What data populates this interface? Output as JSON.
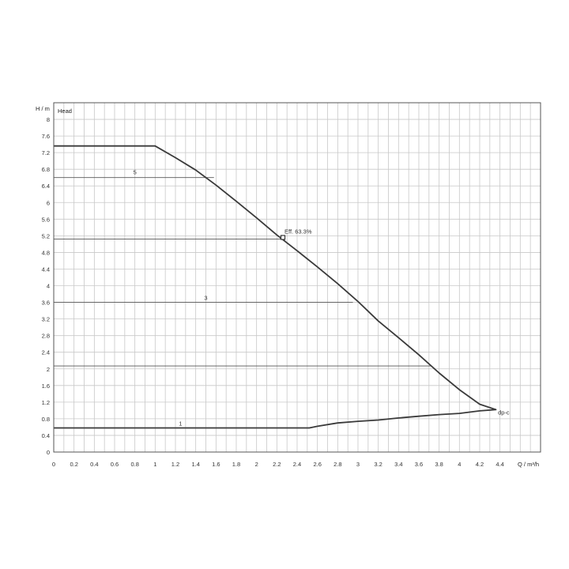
{
  "chart_data": {
    "type": "line",
    "title": "",
    "xlabel": "Q / m³/h",
    "ylabel": "H / m",
    "legend_box_text": "Head",
    "xlim": [
      0,
      4.8
    ],
    "ylim": [
      0,
      8.4
    ],
    "x_ticks": [
      "0",
      "0.2",
      "0.4",
      "0.6",
      "0.8",
      "1",
      "1.2",
      "1.4",
      "1.6",
      "1.8",
      "2",
      "2.2",
      "2.4",
      "2.6",
      "2.8",
      "3",
      "3.2",
      "3.4",
      "3.6",
      "3.8",
      "4",
      "4.2",
      "4.4"
    ],
    "y_ticks": [
      "0",
      "0.4",
      "0.8",
      "1.2",
      "1.6",
      "2",
      "2.4",
      "2.8",
      "3.2",
      "3.6",
      "4",
      "4.4",
      "4.8",
      "5.2",
      "5.6",
      "6",
      "6.4",
      "6.8",
      "7.2",
      "7.6",
      "8"
    ],
    "grid": true,
    "series": [
      {
        "name": "dp-c",
        "points": [
          [
            0,
            7.36
          ],
          [
            1.0,
            7.36
          ],
          [
            1.2,
            7.08
          ],
          [
            1.4,
            6.78
          ],
          [
            1.6,
            6.42
          ],
          [
            1.8,
            6.03
          ],
          [
            2.0,
            5.63
          ],
          [
            2.2,
            5.22
          ],
          [
            2.4,
            4.84
          ],
          [
            2.6,
            4.45
          ],
          [
            2.8,
            4.05
          ],
          [
            3.0,
            3.62
          ],
          [
            3.2,
            3.15
          ],
          [
            3.4,
            2.75
          ],
          [
            3.6,
            2.34
          ],
          [
            3.8,
            1.9
          ],
          [
            4.0,
            1.5
          ],
          [
            4.2,
            1.15
          ],
          [
            4.36,
            1.02
          ],
          [
            4.2,
            0.99
          ],
          [
            4.0,
            0.93
          ],
          [
            3.8,
            0.9
          ],
          [
            3.6,
            0.86
          ],
          [
            3.4,
            0.82
          ],
          [
            3.2,
            0.77
          ],
          [
            3.0,
            0.74
          ],
          [
            2.8,
            0.7
          ],
          [
            2.6,
            0.62
          ],
          [
            2.52,
            0.58
          ],
          [
            0,
            0.58
          ]
        ]
      }
    ],
    "curve_labels": [
      {
        "text": "5",
        "x": 0.8,
        "y": 6.62
      },
      {
        "text": "3",
        "x": 1.5,
        "y": 3.6
      },
      {
        "text": "1",
        "x": 1.25,
        "y": 0.58
      },
      {
        "text": "dp-c",
        "x": 4.38,
        "y": 0.94
      }
    ],
    "horizontal_lines": [
      {
        "y": 6.6,
        "x_to": 1.58
      },
      {
        "y": 5.12,
        "x_to": 2.26
      },
      {
        "y": 3.6,
        "x_to": 2.95
      },
      {
        "y": 2.07,
        "x_to": 3.72
      }
    ],
    "operating_point": {
      "x": 2.26,
      "y": 5.16,
      "label": "Eff.  63.3%"
    }
  }
}
